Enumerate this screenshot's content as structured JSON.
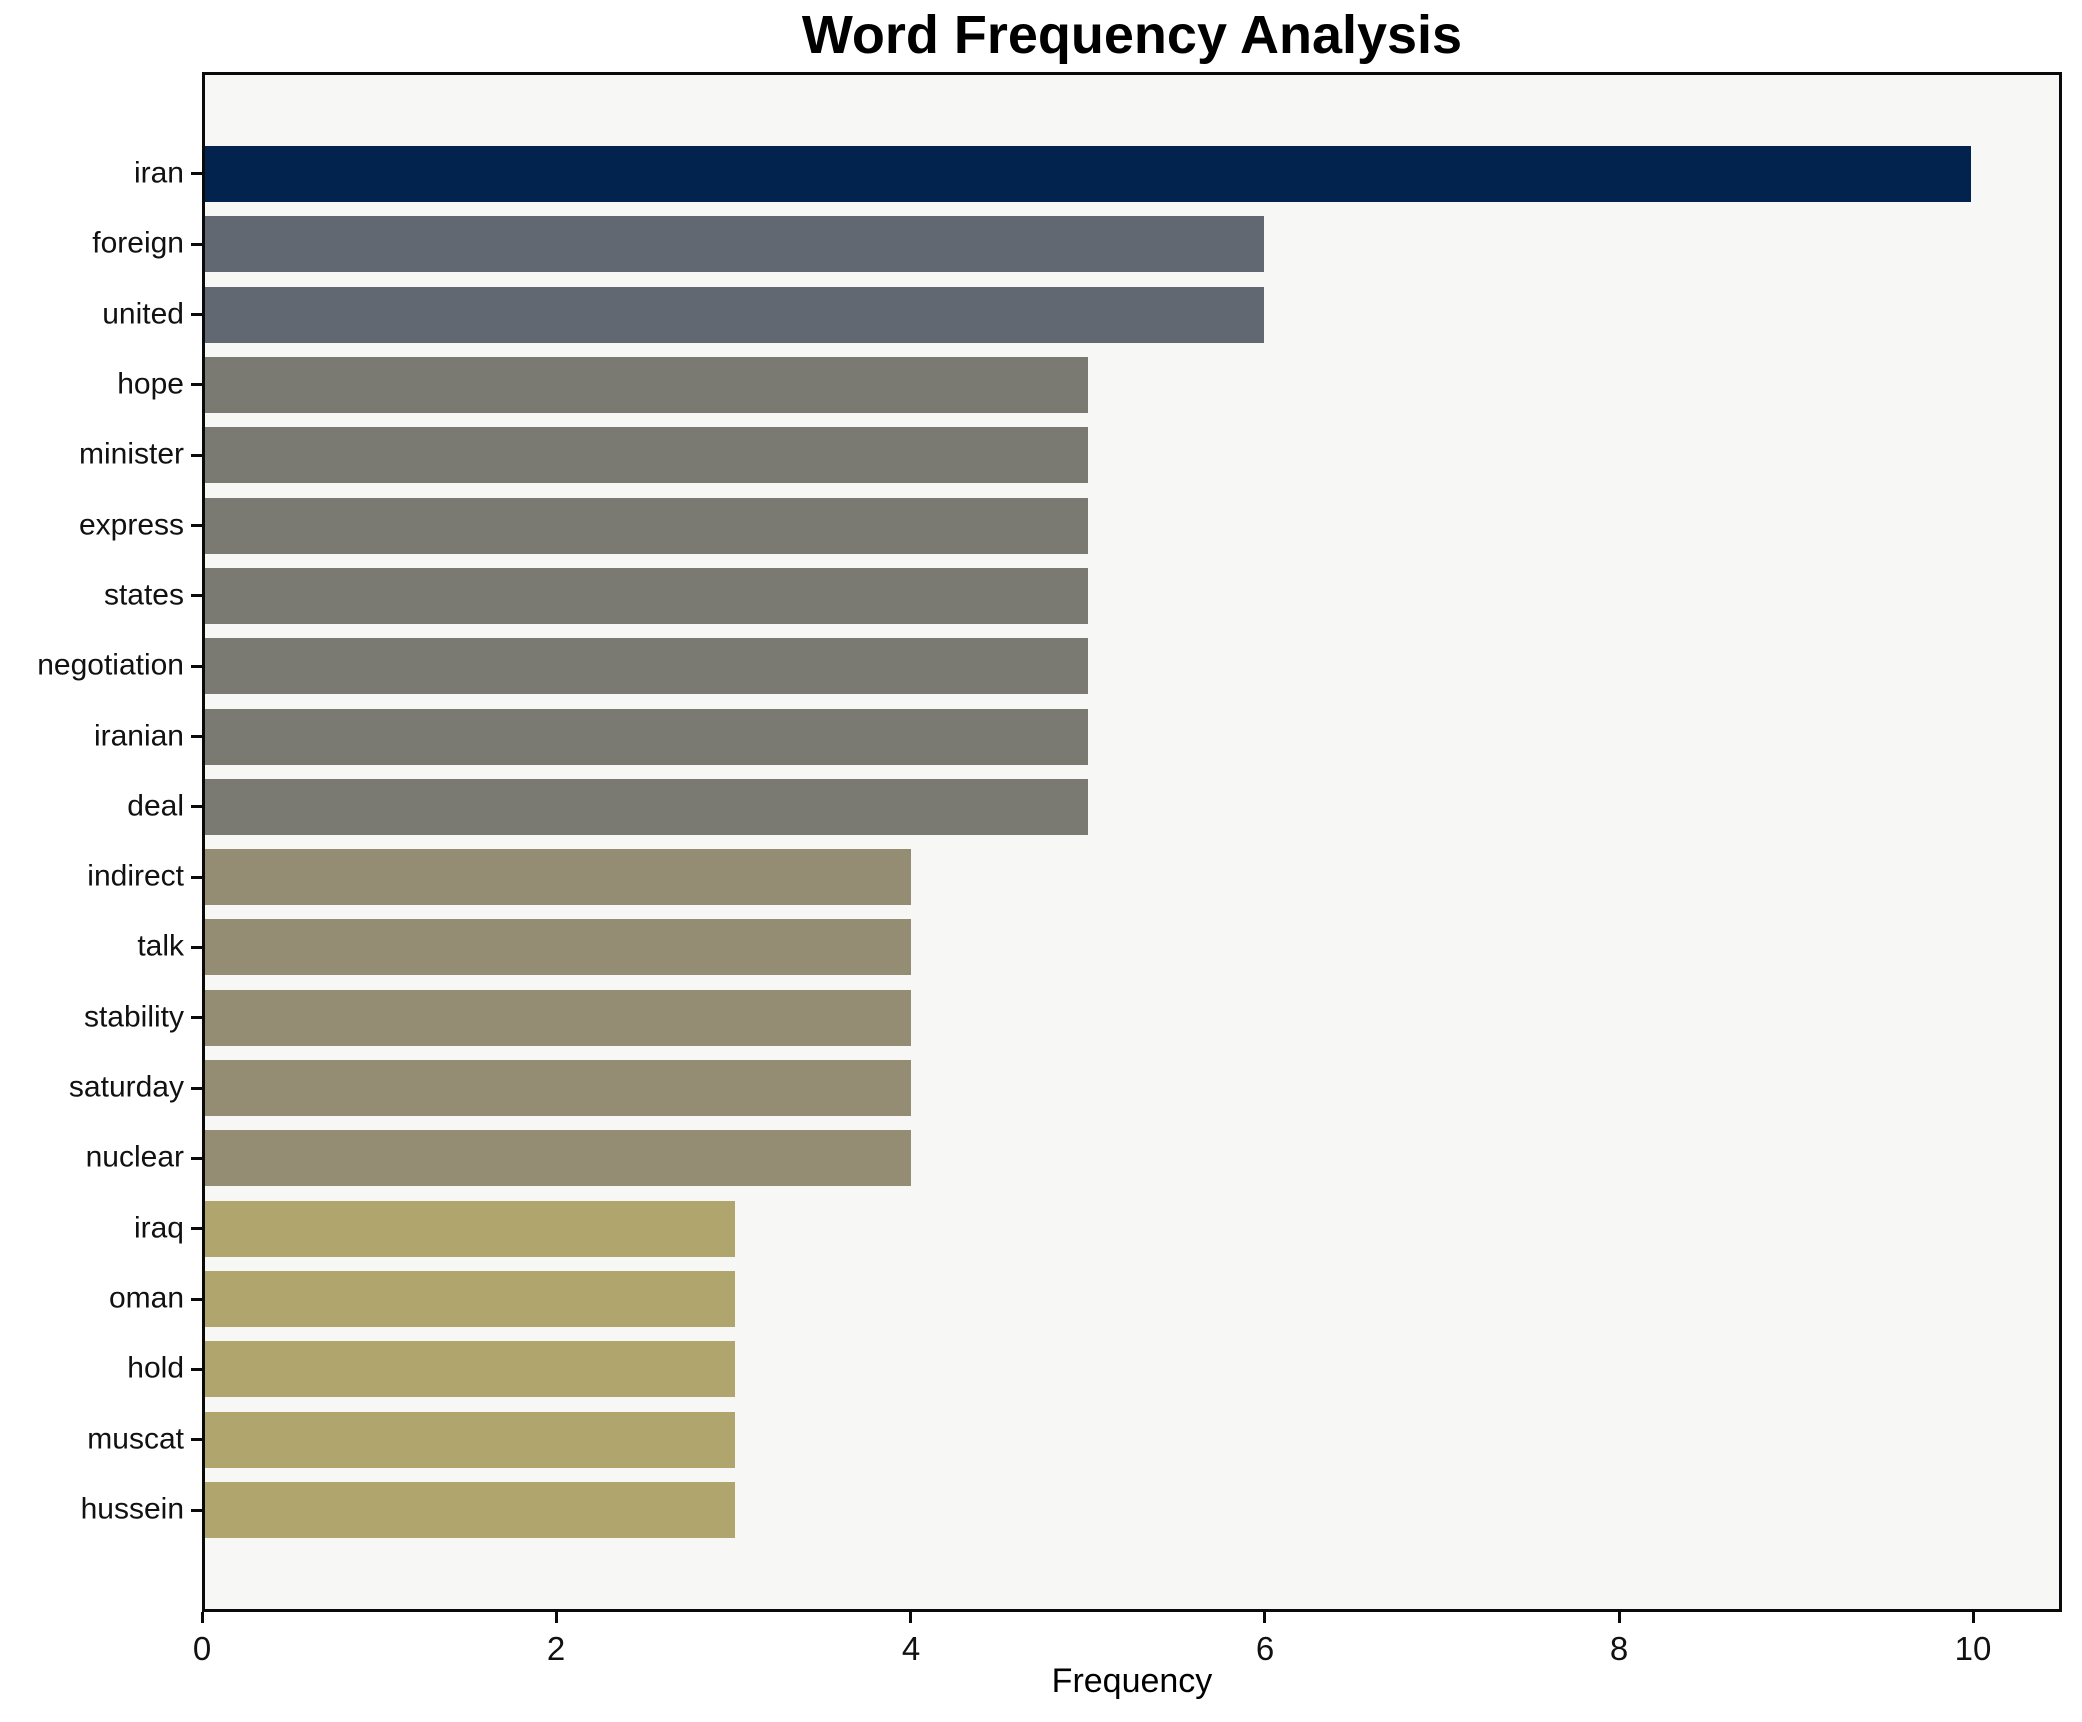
{
  "page": {
    "title": "Word Frequency Analysis"
  },
  "chart_data": {
    "type": "bar",
    "orientation": "horizontal",
    "title": "Word Frequency Analysis",
    "xlabel": "Frequency",
    "ylabel": "",
    "categories": [
      "iran",
      "foreign",
      "united",
      "hope",
      "minister",
      "express",
      "states",
      "negotiation",
      "iranian",
      "deal",
      "indirect",
      "talk",
      "stability",
      "saturday",
      "nuclear",
      "iraq",
      "oman",
      "hold",
      "muscat",
      "hussein"
    ],
    "values": [
      10,
      6,
      6,
      5,
      5,
      5,
      5,
      5,
      5,
      5,
      4,
      4,
      4,
      4,
      4,
      3,
      3,
      3,
      3,
      3
    ],
    "bar_colors": [
      "#02234e",
      "#626871",
      "#626871",
      "#7a7972",
      "#7a7972",
      "#7a7972",
      "#7a7972",
      "#7a7972",
      "#7a7972",
      "#7a7972",
      "#948d73",
      "#948d73",
      "#948d73",
      "#948d73",
      "#948d73",
      "#b0a56c",
      "#b0a56c",
      "#b0a56c",
      "#b0a56c",
      "#b0a56c"
    ],
    "color_by_value": {
      "10": "#02234e",
      "6": "#626871",
      "5": "#7a7972",
      "4": "#948d73",
      "3": "#b0a56c"
    },
    "xlim": [
      0,
      10.5
    ],
    "xticks": [
      0,
      2,
      4,
      6,
      8,
      10
    ],
    "grid": false,
    "legend": null,
    "plot_bg": "#f7f7f5",
    "fig_bg": "#ffffff",
    "spine_color": "#0a0a0a"
  }
}
